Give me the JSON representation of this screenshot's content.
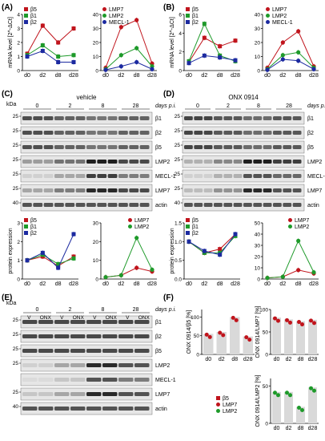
{
  "colors": {
    "red": "#c0141c",
    "green": "#1e9a2a",
    "blue": "#1c2aa0",
    "gray": "#d9d9d9",
    "blot_bg": "#dcdcdc"
  },
  "panel_labels": {
    "A": "(A)",
    "B": "(B)",
    "C": "(C)",
    "D": "(D)",
    "E": "(E)",
    "F": "(F)"
  },
  "common": {
    "mrna_ylabel": "mRNA level [2^-ΔCt]",
    "protein_ylabel": "protein expression",
    "x_ticks": [
      "d0",
      "d2",
      "d8",
      "d28"
    ],
    "days_pi": "days p.i.",
    "kda": "kDa",
    "timepoints": [
      "0",
      "2",
      "8",
      "28"
    ]
  },
  "panel_A": {
    "left_legend": [
      "β5",
      "β1",
      "β2"
    ],
    "right_legend": [
      "LMP7",
      "LMP2",
      "MECL-1"
    ],
    "left_yticks": [
      "0",
      "1",
      "2",
      "3",
      "4"
    ],
    "right_yticks": [
      "0",
      "10",
      "20",
      "30",
      "40"
    ]
  },
  "panel_B": {
    "left_legend": [
      "β5",
      "β1",
      "β2"
    ],
    "right_legend": [
      "LMP7",
      "LMP2",
      "MECL-1"
    ],
    "left_yticks": [
      "0",
      "2",
      "4",
      "6"
    ],
    "right_yticks": [
      "0",
      "10",
      "20",
      "30",
      "40"
    ]
  },
  "panel_C": {
    "title": "vehicle",
    "bands": [
      "β1",
      "β2",
      "β5",
      "LMP2",
      "MECL-1",
      "LMP7",
      "actin"
    ],
    "markers": [
      "25",
      "25",
      "25",
      "25",
      "25",
      "25",
      "40"
    ],
    "left_legend": [
      "β5",
      "β1",
      "β2"
    ],
    "right_legend": [
      "LMP7",
      "LMP2"
    ],
    "left_yticks": [
      "0",
      "1",
      "2",
      "3"
    ],
    "right_yticks": [
      "0",
      "10",
      "20",
      "30"
    ]
  },
  "panel_D": {
    "title": "ONX 0914",
    "bands": [
      "β1",
      "β2",
      "β5",
      "LMP2",
      "MECL-1",
      "LMP7",
      "actin"
    ],
    "markers": [
      "25",
      "25",
      "25",
      "25",
      "25",
      "25",
      "40"
    ],
    "left_legend": [
      "β5",
      "β1",
      "β2"
    ],
    "right_legend": [
      "LMP7",
      "LMP2"
    ],
    "left_yticks": [
      "0.0",
      "0.5",
      "1.0",
      "1.5"
    ],
    "right_yticks": [
      "0",
      "10",
      "20",
      "30",
      "40",
      "50"
    ]
  },
  "panel_E": {
    "lane_labels": [
      "V",
      "ONX",
      "V",
      "ONX",
      "V",
      "ONX",
      "V",
      "ONX"
    ],
    "bands": [
      "β1",
      "β2",
      "β5",
      "LMP2",
      "MECL-1",
      "LMP7",
      "actin"
    ],
    "markers": [
      "25",
      "25",
      "25",
      "25",
      "",
      "25",
      "40"
    ]
  },
  "panel_F": {
    "y1": "ONX 0914/β5 [%]",
    "y2": "ONX 0914/LMP7 [%]",
    "y3": "ONX 0914/LMP2 [%]",
    "legend": [
      "β5",
      "LMP7",
      "LMP2"
    ],
    "yticks": [
      "0",
      "50",
      "100"
    ]
  },
  "chart_data": [
    {
      "type": "line",
      "panel": "A-left",
      "categories": [
        "d0",
        "d2",
        "d8",
        "d28"
      ],
      "ylim": [
        0,
        4
      ],
      "ylabel": "mRNA level [2^-ΔCt]",
      "series": [
        {
          "name": "β5",
          "values": [
            1.2,
            3.2,
            2.0,
            3.0
          ]
        },
        {
          "name": "β1",
          "values": [
            1.1,
            1.8,
            1.0,
            1.1
          ]
        },
        {
          "name": "β2",
          "values": [
            1.0,
            1.4,
            0.6,
            0.6
          ]
        }
      ]
    },
    {
      "type": "line",
      "panel": "A-right",
      "categories": [
        "d0",
        "d2",
        "d8",
        "d28"
      ],
      "ylim": [
        0,
        40
      ],
      "series": [
        {
          "name": "LMP7",
          "values": [
            2,
            31,
            36,
            5
          ]
        },
        {
          "name": "LMP2",
          "values": [
            1,
            11,
            16,
            3
          ]
        },
        {
          "name": "MECL-1",
          "values": [
            0.5,
            3,
            6,
            1
          ]
        }
      ]
    },
    {
      "type": "line",
      "panel": "B-left",
      "categories": [
        "d0",
        "d2",
        "d8",
        "d28"
      ],
      "ylim": [
        0,
        6
      ],
      "ylabel": "mRNA level [2^-ΔCt]",
      "series": [
        {
          "name": "β5",
          "values": [
            0.9,
            3.5,
            2.6,
            3.2
          ]
        },
        {
          "name": "β1",
          "values": [
            1.0,
            5.0,
            1.6,
            1.0
          ]
        },
        {
          "name": "β2",
          "values": [
            0.8,
            1.6,
            1.4,
            1.1
          ]
        }
      ]
    },
    {
      "type": "line",
      "panel": "B-right",
      "categories": [
        "d0",
        "d2",
        "d8",
        "d28"
      ],
      "ylim": [
        0,
        40
      ],
      "series": [
        {
          "name": "LMP7",
          "values": [
            2,
            20,
            28,
            3
          ]
        },
        {
          "name": "LMP2",
          "values": [
            1,
            11,
            13,
            2
          ]
        },
        {
          "name": "MECL-1",
          "values": [
            0.5,
            8,
            7,
            1
          ]
        }
      ]
    },
    {
      "type": "line",
      "panel": "C-left",
      "categories": [
        "d0",
        "d2",
        "d8",
        "d28"
      ],
      "ylim": [
        0,
        3
      ],
      "ylabel": "protein expression",
      "series": [
        {
          "name": "β5",
          "values": [
            1.0,
            1.2,
            0.7,
            1.2
          ]
        },
        {
          "name": "β1",
          "values": [
            1.0,
            1.3,
            0.8,
            1.1
          ]
        },
        {
          "name": "β2",
          "values": [
            1.0,
            1.4,
            0.6,
            2.4
          ]
        }
      ]
    },
    {
      "type": "line",
      "panel": "C-right",
      "categories": [
        "d0",
        "d2",
        "d8",
        "d28"
      ],
      "ylim": [
        0,
        30
      ],
      "series": [
        {
          "name": "LMP7",
          "values": [
            1,
            2,
            6,
            4
          ]
        },
        {
          "name": "LMP2",
          "values": [
            1,
            2,
            22,
            5
          ]
        }
      ]
    },
    {
      "type": "line",
      "panel": "D-left",
      "categories": [
        "d0",
        "d2",
        "d8",
        "d28"
      ],
      "ylim": [
        0,
        1.5
      ],
      "ylabel": "protein expression",
      "series": [
        {
          "name": "β5",
          "values": [
            1.0,
            0.7,
            0.8,
            1.2
          ]
        },
        {
          "name": "β1",
          "values": [
            1.0,
            0.7,
            0.7,
            1.15
          ]
        },
        {
          "name": "β2",
          "values": [
            1.0,
            0.75,
            0.65,
            1.2
          ]
        }
      ]
    },
    {
      "type": "line",
      "panel": "D-right",
      "categories": [
        "d0",
        "d2",
        "d8",
        "d28"
      ],
      "ylim": [
        0,
        50
      ],
      "series": [
        {
          "name": "LMP7",
          "values": [
            1,
            2,
            8,
            5
          ]
        },
        {
          "name": "LMP2",
          "values": [
            1,
            2,
            34,
            6
          ]
        }
      ]
    },
    {
      "type": "bar",
      "panel": "F-1",
      "categories": [
        "d0",
        "d2",
        "d8",
        "d28"
      ],
      "ylim": [
        0,
        120
      ],
      "ylabel": "ONX 0914/β5 [%]",
      "values": [
        55,
        60,
        100,
        48
      ]
    },
    {
      "type": "bar",
      "panel": "F-2",
      "categories": [
        "d0",
        "d2",
        "d8",
        "d28"
      ],
      "ylim": [
        0,
        100
      ],
      "ylabel": "ONX 0914/LMP7 [%]",
      "values": [
        82,
        78,
        74,
        77
      ]
    },
    {
      "type": "bar",
      "panel": "F-3",
      "categories": [
        "d0",
        "d2",
        "d8",
        "d28"
      ],
      "ylim": [
        0,
        60
      ],
      "ylabel": "ONX 0914/LMP2 [%]",
      "values": [
        42,
        42,
        22,
        48
      ]
    }
  ]
}
